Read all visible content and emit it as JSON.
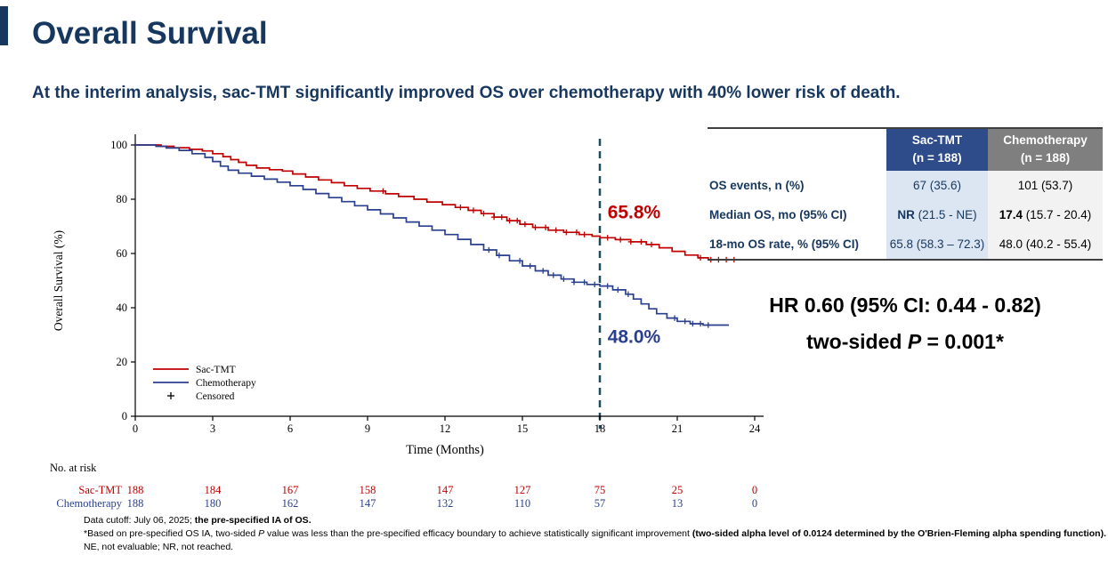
{
  "slide": {
    "title": "Overall Survival",
    "subtitle": "At the interim analysis, sac-TMT significantly improved OS over chemotherapy with 40% lower risk of death.",
    "accent_color": "#17375E"
  },
  "chart_data": {
    "type": "line",
    "subtype": "kaplan-meier-step",
    "title": "",
    "xlabel": "Time (Months)",
    "ylabel": "Overall Survival (%)",
    "xlim": [
      0,
      24
    ],
    "ylim": [
      0,
      100
    ],
    "xticks": [
      0,
      3,
      6,
      9,
      12,
      15,
      18,
      21,
      24
    ],
    "yticks": [
      0,
      20,
      40,
      60,
      80,
      100
    ],
    "grid": false,
    "legend_position": "inside-lower-left",
    "reference_line": {
      "x": 18,
      "color": "#1B4F5E",
      "style": "dashed"
    },
    "annotations": [
      {
        "text": "65.8%",
        "x": 18.3,
        "y": 73,
        "color": "#C00000"
      },
      {
        "text": "48.0%",
        "x": 18.3,
        "y": 27,
        "color": "#2A3F8F"
      }
    ],
    "series": [
      {
        "name": "Sac-TMT",
        "color": "#C00000",
        "points": [
          [
            0,
            100
          ],
          [
            1.0,
            99.5
          ],
          [
            1.5,
            99.0
          ],
          [
            2.1,
            98.4
          ],
          [
            2.6,
            97.8
          ],
          [
            3.0,
            96.8
          ],
          [
            3.4,
            95.7
          ],
          [
            3.7,
            94.6
          ],
          [
            4.0,
            93.6
          ],
          [
            4.3,
            92.5
          ],
          [
            4.7,
            91.5
          ],
          [
            5.2,
            90.9
          ],
          [
            5.7,
            90.4
          ],
          [
            6.1,
            89.3
          ],
          [
            6.6,
            88.2
          ],
          [
            7.1,
            87.1
          ],
          [
            7.6,
            86.1
          ],
          [
            8.1,
            85.0
          ],
          [
            8.6,
            84.0
          ],
          [
            9.1,
            83.0
          ],
          [
            9.7,
            82.0
          ],
          [
            10.2,
            81.0
          ],
          [
            10.8,
            80.0
          ],
          [
            11.3,
            79.0
          ],
          [
            11.9,
            78.0
          ],
          [
            12.4,
            77.0
          ],
          [
            12.9,
            75.9
          ],
          [
            13.4,
            74.7
          ],
          [
            13.9,
            73.4
          ],
          [
            14.4,
            72.1
          ],
          [
            14.9,
            70.8
          ],
          [
            15.4,
            69.6
          ],
          [
            16.0,
            68.6
          ],
          [
            16.6,
            67.8
          ],
          [
            17.2,
            67.0
          ],
          [
            17.7,
            66.4
          ],
          [
            18.0,
            65.8
          ],
          [
            18.6,
            65.1
          ],
          [
            19.2,
            64.3
          ],
          [
            19.8,
            63.3
          ],
          [
            20.3,
            62.1
          ],
          [
            20.8,
            60.8
          ],
          [
            21.3,
            59.4
          ],
          [
            21.8,
            58.4
          ],
          [
            22.2,
            57.7
          ],
          [
            23.4,
            57.7
          ]
        ],
        "censor_times": [
          9.6,
          12.6,
          13.1,
          13.5,
          13.9,
          14.2,
          14.5,
          14.8,
          15.1,
          15.5,
          15.9,
          16.3,
          16.7,
          17.1,
          17.4,
          18.3,
          18.8,
          19.2,
          19.6,
          20.0,
          21.9,
          22.3,
          22.6,
          22.9,
          23.2
        ]
      },
      {
        "name": "Chemotherapy",
        "color": "#2A3F8F",
        "points": [
          [
            0,
            100
          ],
          [
            0.8,
            99.5
          ],
          [
            1.2,
            98.9
          ],
          [
            1.7,
            98.0
          ],
          [
            2.2,
            96.8
          ],
          [
            2.7,
            95.4
          ],
          [
            3.0,
            93.9
          ],
          [
            3.3,
            92.2
          ],
          [
            3.6,
            90.7
          ],
          [
            4.0,
            89.6
          ],
          [
            4.5,
            88.5
          ],
          [
            5.0,
            87.4
          ],
          [
            5.5,
            86.3
          ],
          [
            6.0,
            85.0
          ],
          [
            6.5,
            83.6
          ],
          [
            7.0,
            82.1
          ],
          [
            7.5,
            80.6
          ],
          [
            8.0,
            79.1
          ],
          [
            8.5,
            77.6
          ],
          [
            9.0,
            76.1
          ],
          [
            9.5,
            74.6
          ],
          [
            10.0,
            73.1
          ],
          [
            10.5,
            71.6
          ],
          [
            11.0,
            70.1
          ],
          [
            11.5,
            68.6
          ],
          [
            12.0,
            67.0
          ],
          [
            12.5,
            65.2
          ],
          [
            13.0,
            63.3
          ],
          [
            13.5,
            61.3
          ],
          [
            14.0,
            59.3
          ],
          [
            14.5,
            57.3
          ],
          [
            15.0,
            55.4
          ],
          [
            15.5,
            53.6
          ],
          [
            16.0,
            52.0
          ],
          [
            16.5,
            50.6
          ],
          [
            17.0,
            49.4
          ],
          [
            17.5,
            48.6
          ],
          [
            18.0,
            48.0
          ],
          [
            18.5,
            46.6
          ],
          [
            19.0,
            45.0
          ],
          [
            19.3,
            43.2
          ],
          [
            19.6,
            41.4
          ],
          [
            19.9,
            39.6
          ],
          [
            20.2,
            37.8
          ],
          [
            20.6,
            36.2
          ],
          [
            21.0,
            35.0
          ],
          [
            21.5,
            34.1
          ],
          [
            22.0,
            33.6
          ],
          [
            23.0,
            33.6
          ]
        ],
        "censor_times": [
          13.7,
          14.1,
          14.9,
          15.3,
          15.8,
          16.2,
          16.6,
          17.0,
          17.4,
          17.8,
          18.3,
          18.7,
          19.1,
          20.9,
          21.3,
          21.6,
          21.9,
          22.2
        ]
      }
    ],
    "legend": [
      {
        "label": "Sac-TMT",
        "color": "#C00000",
        "marker": "line"
      },
      {
        "label": "Chemotherapy",
        "color": "#2A3F8F",
        "marker": "line"
      },
      {
        "label": "Censored",
        "color": "#000000",
        "marker": "plus"
      }
    ],
    "risk_table": {
      "times": [
        0,
        3,
        6,
        9,
        12,
        15,
        18,
        21,
        24
      ],
      "rows": [
        {
          "label": "Sac-TMT",
          "color": "#C00000",
          "values": [
            188,
            184,
            167,
            158,
            147,
            127,
            75,
            25,
            0
          ]
        },
        {
          "label": "Chemotherapy",
          "color": "#2A3F8F",
          "values": [
            188,
            180,
            162,
            147,
            132,
            110,
            57,
            13,
            0
          ]
        }
      ]
    }
  },
  "risk_header": "No. at risk",
  "results_table": {
    "columns": [
      {
        "name": "Sac-TMT",
        "sub": "(n = 188)",
        "bg": "#2E4C8A"
      },
      {
        "name": "Chemotherapy",
        "sub": "(n = 188)",
        "bg": "#7F7F7F"
      }
    ],
    "rows": [
      {
        "label": "OS events, n (%)",
        "sac": "67 (35.6)",
        "chemo": "101 (53.7)"
      },
      {
        "label": "Median OS, mo (95% CI)",
        "sac_bold": "NR",
        "sac_rest": " (21.5 - NE)",
        "chemo_bold": "17.4",
        "chemo_rest": " (15.7 - 20.4)"
      },
      {
        "label": "18-mo OS rate, % (95% CI)",
        "sac": "65.8 (58.3 – 72.3)",
        "chemo": "48.0 (40.2 - 55.4)"
      }
    ]
  },
  "stats": {
    "hr_text": "HR 0.60 (95% CI: 0.44 - 0.82)",
    "p_prefix": "two-sided ",
    "p_symbol": "P",
    "p_rest": " = 0.001*"
  },
  "footnotes": {
    "line1_normal": "Data cutoff: July 06, 2025; ",
    "line1_bold": "the pre-specified IA of OS",
    "line1_end": ".",
    "line2_a": "*Based on pre-specified OS IA, two-sided ",
    "line2_p": "P",
    "line2_b": " value was less than the pre-specified efficacy boundary to achieve statistically significant improvement ",
    "line2_bold": "(two-sided alpha level of 0.0124 determined by the O'Brien-Fleming alpha spending function)",
    "line2_end": ".",
    "line3": "NE, not evaluable; NR, not reached."
  }
}
